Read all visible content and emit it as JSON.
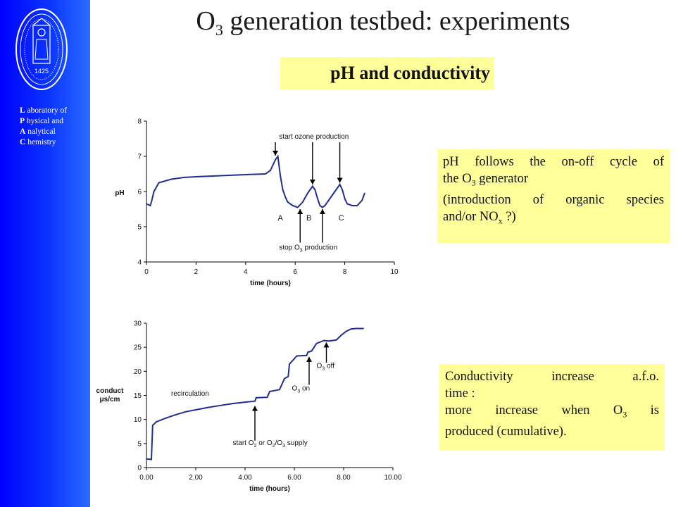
{
  "header": {
    "title_main": "O",
    "title_sub": "3",
    "title_rest": " generation testbed: experiments",
    "subtitle": "pH and conductivity"
  },
  "sidebar": {
    "logo": "KU Leuven seal",
    "logo_year": "1425",
    "lab_lines": [
      {
        "initial": "L",
        "rest": " aboratory of"
      },
      {
        "initial": "P",
        "rest": " hysical and"
      },
      {
        "initial": "A",
        "rest": " nalytical"
      },
      {
        "initial": "C",
        "rest": " hemistry"
      }
    ],
    "color": "#0000ff"
  },
  "notes": {
    "ph": {
      "line1": "pH follows the on-off cycle of",
      "line2a": "the O",
      "line2sub": "3",
      "line2b": " generator",
      "line3": "(introduction of organic species",
      "line4a": "and/or NO",
      "line4sub": "x",
      "line4b": " ?)"
    },
    "cond": {
      "line1": "Conductivity  increase  a.f.o.",
      "line2": "time :",
      "line3a": "more  increase  when  O",
      "line3sub": "3",
      "line3b": "  is",
      "line4": "produced (cumulative)."
    },
    "background": "#ffff99"
  },
  "chart_data": [
    {
      "type": "line",
      "xlabel": "time (hours)",
      "ylabel": "pH",
      "xlim": [
        0,
        10
      ],
      "ylim": [
        4,
        8
      ],
      "xticks": [
        "0",
        "2",
        "4",
        "6",
        "8",
        "10"
      ],
      "yticks": [
        "4",
        "5",
        "6",
        "7",
        "8"
      ],
      "series": [
        {
          "color": "#1f2f8f",
          "x": [
            0.0,
            0.15,
            0.2,
            0.3,
            0.5,
            1.0,
            1.5,
            2.0,
            3.0,
            4.0,
            4.8,
            5.0,
            5.1,
            5.2,
            5.3,
            5.4,
            5.5,
            5.6,
            5.7,
            5.9,
            6.1,
            6.3,
            6.5,
            6.7,
            6.8,
            6.9,
            7.0,
            7.1,
            7.2,
            7.4,
            7.6,
            7.8,
            7.9,
            8.0,
            8.1,
            8.3,
            8.5,
            8.7,
            8.8
          ],
          "y": [
            5.65,
            5.6,
            5.7,
            6.0,
            6.25,
            6.35,
            6.4,
            6.42,
            6.45,
            6.48,
            6.5,
            6.6,
            6.75,
            6.9,
            7.0,
            6.45,
            6.05,
            5.85,
            5.7,
            5.6,
            5.55,
            5.7,
            5.95,
            6.15,
            6.05,
            5.8,
            5.6,
            5.55,
            5.6,
            5.8,
            6.0,
            6.2,
            6.05,
            5.8,
            5.65,
            5.6,
            5.6,
            5.75,
            5.95
          ]
        }
      ],
      "annotations": [
        {
          "text": "start ozone production",
          "x": 5.35,
          "y": 7.5
        },
        {
          "text": "stop O3 production",
          "x": 5.35,
          "y": 4.35
        },
        {
          "text": "A",
          "x": 5.3,
          "y": 5.18
        },
        {
          "text": "B",
          "x": 6.45,
          "y": 5.18
        },
        {
          "text": "C",
          "x": 7.75,
          "y": 5.18
        }
      ],
      "arrows_down_at": [
        5.2,
        6.7,
        7.8
      ],
      "arrows_up_at": [
        6.2,
        7.1
      ]
    },
    {
      "type": "line",
      "xlabel": "time (hours)",
      "ylabel": "conduct μs/cm",
      "ylabel_lines": [
        "conduct",
        "μs/cm"
      ],
      "xlim": [
        0,
        10
      ],
      "ylim": [
        0,
        30
      ],
      "xticks": [
        "0.00",
        "2.00",
        "4.00",
        "6.00",
        "8.00",
        "10.00"
      ],
      "yticks": [
        "0",
        "5",
        "10",
        "15",
        "20",
        "25",
        "30"
      ],
      "series": [
        {
          "color": "#1f2f8f",
          "x": [
            0.0,
            0.2,
            0.25,
            0.4,
            0.8,
            1.2,
            1.6,
            2.0,
            2.5,
            3.0,
            3.5,
            4.0,
            4.4,
            4.45,
            4.9,
            5.0,
            5.4,
            5.6,
            5.75,
            5.8,
            6.1,
            6.5,
            6.55,
            6.7,
            6.9,
            7.1,
            7.2,
            7.4,
            7.7,
            7.9,
            8.1,
            8.3,
            8.5,
            8.8
          ],
          "y": [
            1.8,
            1.7,
            8.8,
            9.5,
            10.3,
            11.0,
            11.6,
            12.0,
            12.5,
            12.9,
            13.3,
            13.6,
            13.8,
            14.5,
            14.6,
            15.8,
            16.2,
            18.5,
            18.9,
            21.5,
            23.2,
            23.3,
            24.0,
            24.2,
            25.8,
            26.2,
            26.4,
            26.3,
            26.5,
            27.5,
            28.3,
            28.8,
            28.9,
            28.9
          ]
        }
      ],
      "annotations": [
        {
          "text": "recirculation",
          "x": 1.0,
          "y": 14.9
        },
        {
          "text": "start O2 or O2/O3 supply",
          "x": 3.5,
          "y": 4.7
        },
        {
          "text": "O3 on",
          "x": 5.9,
          "y": 16.0
        },
        {
          "text": "O3 off",
          "x": 6.9,
          "y": 20.7
        }
      ],
      "arrows_up_at": [
        4.4,
        6.6,
        7.3
      ]
    }
  ]
}
